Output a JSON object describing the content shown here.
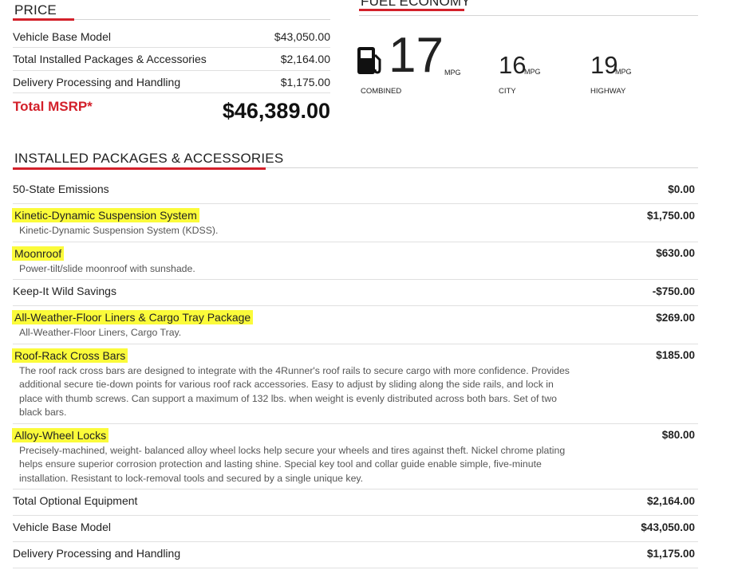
{
  "price": {
    "title": "PRICE",
    "rows": [
      {
        "label": "Vehicle Base Model",
        "value": "$43,050.00"
      },
      {
        "label": "Total Installed Packages & Accessories",
        "value": "$2,164.00"
      },
      {
        "label": "Delivery Processing and Handling",
        "value": "$1,175.00"
      }
    ],
    "total": {
      "label": "Total MSRP*",
      "value": "$46,389.00"
    }
  },
  "fuel": {
    "title": "FUEL ECONOMY",
    "items": [
      {
        "value": 17,
        "unit": "MPG",
        "label": "COMBINED"
      },
      {
        "value": 16,
        "unit": "MPG",
        "label": "CITY"
      },
      {
        "value": 19,
        "unit": "MPG",
        "label": "HIGHWAY"
      }
    ]
  },
  "packages": {
    "title": "INSTALLED PACKAGES & ACCESSORIES",
    "items": [
      {
        "name": "50-State Emissions",
        "price": "$0.00",
        "highlight": false
      },
      {
        "name": "Kinetic-Dynamic Suspension System",
        "price": "$1,750.00",
        "description": "Kinetic-Dynamic Suspension System (KDSS).",
        "highlight": true
      },
      {
        "name": "Moonroof",
        "price": "$630.00",
        "description": "Power-tilt/slide moonroof with sunshade.",
        "highlight": true
      },
      {
        "name": "Keep-It Wild Savings",
        "price": "-$750.00",
        "highlight": false
      },
      {
        "name": "All-Weather-Floor Liners & Cargo Tray Package",
        "price": "$269.00",
        "description": "All-Weather-Floor Liners, Cargo Tray.",
        "highlight": true
      },
      {
        "name": "Roof-Rack Cross Bars",
        "price": "$185.00",
        "description": "The roof rack cross bars are designed to integrate with the 4Runner's roof rails to secure cargo with more confidence. Provides additional secure tie-down points for various roof rack accessories. Easy to adjust by sliding along the side rails, and lock in place with thumb screws.  Can support a maximum of 132 lbs. when weight is evenly distributed across both bars.  Set of two black bars.",
        "highlight": true
      },
      {
        "name": "Alloy-Wheel Locks",
        "price": "$80.00",
        "description": "Precisely-machined, weight- balanced alloy wheel locks help secure your wheels and tires against theft.  Nickel chrome plating helps ensure superior corrosion protection and lasting shine. Special key tool and collar guide enable simple, five-minute installation. Resistant to lock-removal tools and secured by a single unique key.",
        "highlight": true
      },
      {
        "name": "Total Optional Equipment",
        "price": "$2,164.00",
        "highlight": false
      },
      {
        "name": "Vehicle Base Model",
        "price": "$43,050.00",
        "highlight": false
      },
      {
        "name": "Delivery Processing and Handling",
        "price": "$1,175.00",
        "highlight": false
      }
    ]
  }
}
